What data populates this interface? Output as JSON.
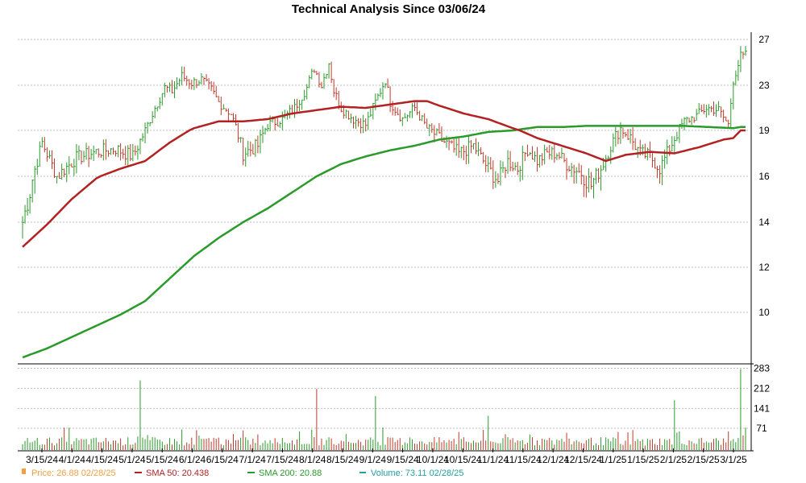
{
  "chart_data": {
    "type": "line",
    "title": "Technical Analysis Since 03/06/24",
    "grid": true,
    "price_panel": {
      "ylim": [
        8,
        27.5
      ],
      "yticks": [
        10,
        12,
        14,
        16,
        19,
        23,
        27
      ],
      "ytick_labels": [
        "10",
        "12",
        "14",
        "16",
        "19",
        "23",
        "27"
      ]
    },
    "volume_panel": {
      "ylim": [
        0,
        290
      ],
      "yticks": [
        71,
        141,
        212,
        283
      ],
      "ytick_labels": [
        "71",
        "141",
        "212",
        "283"
      ]
    },
    "x_tick_labels": [
      "3/15/24",
      "4/1/24",
      "4/15/24",
      "5/1/24",
      "5/15/24",
      "6/1/24",
      "6/15/24",
      "7/1/24",
      "7/15/24",
      "8/1/24",
      "8/15/24",
      "9/1/24",
      "9/15/24",
      "10/1/24",
      "10/15/24",
      "11/1/24",
      "11/15/24",
      "12/1/24",
      "12/15/24",
      "1/1/25",
      "1/15/25",
      "2/1/25",
      "2/15/25",
      "3/1/25"
    ],
    "legend": {
      "price": {
        "label": "Price: 26.88  02/28/25",
        "color": "#f0a040"
      },
      "sma50": {
        "label": "SMA 50: 20.438",
        "color": "#b22222"
      },
      "sma200": {
        "label": "SMA 200: 20.88",
        "color": "#2a9a2a"
      },
      "volume": {
        "label": "Volume: 73.11  02/28/25",
        "color": "#20a0a0"
      }
    },
    "series": [
      {
        "name": "Price",
        "anchors": [
          [
            0,
            14.0
          ],
          [
            3,
            15.3
          ],
          [
            8,
            18.2
          ],
          [
            14,
            16.0
          ],
          [
            22,
            17.2
          ],
          [
            30,
            17.6
          ],
          [
            38,
            17.8
          ],
          [
            45,
            17.3
          ],
          [
            50,
            19.0
          ],
          [
            54,
            21.0
          ],
          [
            58,
            22.8
          ],
          [
            61,
            22.5
          ],
          [
            65,
            23.8
          ],
          [
            69,
            23.2
          ],
          [
            73,
            23.5
          ],
          [
            77,
            22.6
          ],
          [
            80,
            21.5
          ],
          [
            85,
            20.5
          ],
          [
            90,
            17.5
          ],
          [
            96,
            18.0
          ],
          [
            100,
            19.5
          ],
          [
            106,
            20.0
          ],
          [
            111,
            21.0
          ],
          [
            116,
            22.8
          ],
          [
            119,
            24.5
          ],
          [
            122,
            23.0
          ],
          [
            125,
            25.0
          ],
          [
            127,
            22.5
          ],
          [
            130,
            21.0
          ],
          [
            135,
            20.0
          ],
          [
            140,
            19.5
          ],
          [
            145,
            22.0
          ],
          [
            148,
            23.5
          ],
          [
            150,
            21.5
          ],
          [
            155,
            20.0
          ],
          [
            160,
            21.0
          ],
          [
            165,
            19.2
          ],
          [
            170,
            18.5
          ],
          [
            178,
            17.5
          ],
          [
            184,
            18.0
          ],
          [
            190,
            16.5
          ],
          [
            194,
            15.8
          ],
          [
            198,
            17.0
          ],
          [
            202,
            16.5
          ],
          [
            206,
            17.8
          ],
          [
            210,
            17.0
          ],
          [
            214,
            17.5
          ],
          [
            218,
            17.5
          ],
          [
            222,
            16.8
          ],
          [
            228,
            16.2
          ],
          [
            232,
            15.6
          ],
          [
            236,
            16.5
          ],
          [
            240,
            18.0
          ],
          [
            244,
            19.2
          ],
          [
            248,
            18.5
          ],
          [
            252,
            17.5
          ],
          [
            256,
            17.3
          ],
          [
            260,
            16.5
          ],
          [
            266,
            18.5
          ],
          [
            270,
            19.8
          ],
          [
            275,
            20.3
          ],
          [
            279,
            21.0
          ],
          [
            284,
            20.8
          ],
          [
            288,
            19.5
          ],
          [
            290,
            23.5
          ],
          [
            293,
            25.5
          ]
        ],
        "last": 26.88
      },
      {
        "name": "SMA 50",
        "anchors": [
          [
            0,
            12.9
          ],
          [
            10,
            13.9
          ],
          [
            20,
            15.0
          ],
          [
            30,
            15.9
          ],
          [
            40,
            16.5
          ],
          [
            50,
            17.0
          ],
          [
            60,
            18.2
          ],
          [
            70,
            19.2
          ],
          [
            80,
            19.8
          ],
          [
            90,
            19.8
          ],
          [
            100,
            20.0
          ],
          [
            110,
            20.5
          ],
          [
            120,
            20.8
          ],
          [
            130,
            21.1
          ],
          [
            140,
            21.0
          ],
          [
            150,
            21.3
          ],
          [
            160,
            21.6
          ],
          [
            165,
            21.6
          ],
          [
            170,
            21.2
          ],
          [
            180,
            20.5
          ],
          [
            190,
            20.0
          ],
          [
            200,
            19.2
          ],
          [
            210,
            18.5
          ],
          [
            220,
            18.0
          ],
          [
            230,
            17.5
          ],
          [
            238,
            17.0
          ],
          [
            246,
            17.4
          ],
          [
            256,
            17.6
          ],
          [
            266,
            17.5
          ],
          [
            276,
            17.9
          ],
          [
            286,
            18.4
          ],
          [
            290,
            18.5
          ],
          [
            293,
            19.0
          ]
        ],
        "last": 20.438
      },
      {
        "name": "SMA 200",
        "anchors": [
          [
            0,
            8.0
          ],
          [
            10,
            8.4
          ],
          [
            20,
            8.9
          ],
          [
            30,
            9.4
          ],
          [
            40,
            9.9
          ],
          [
            50,
            10.5
          ],
          [
            60,
            11.5
          ],
          [
            70,
            12.5
          ],
          [
            80,
            13.3
          ],
          [
            90,
            14.0
          ],
          [
            100,
            14.6
          ],
          [
            110,
            15.3
          ],
          [
            120,
            16.0
          ],
          [
            130,
            16.8
          ],
          [
            140,
            17.3
          ],
          [
            150,
            17.7
          ],
          [
            160,
            18.0
          ],
          [
            170,
            18.4
          ],
          [
            180,
            18.6
          ],
          [
            190,
            18.9
          ],
          [
            200,
            19.0
          ],
          [
            210,
            19.3
          ],
          [
            220,
            19.3
          ],
          [
            230,
            19.4
          ],
          [
            240,
            19.4
          ],
          [
            250,
            19.4
          ],
          [
            260,
            19.4
          ],
          [
            270,
            19.4
          ],
          [
            280,
            19.3
          ],
          [
            290,
            19.2
          ],
          [
            293,
            19.3
          ]
        ],
        "last": 20.88
      },
      {
        "name": "Volume",
        "spikes": [
          [
            48,
            240
          ],
          [
            72,
            45
          ],
          [
            80,
            38
          ],
          [
            120,
            210
          ],
          [
            144,
            185
          ],
          [
            190,
            115
          ],
          [
            222,
            55
          ],
          [
            266,
            170
          ],
          [
            293,
            280
          ],
          [
            295,
            130
          ]
        ],
        "last": 73.11
      }
    ],
    "bars": 296
  }
}
